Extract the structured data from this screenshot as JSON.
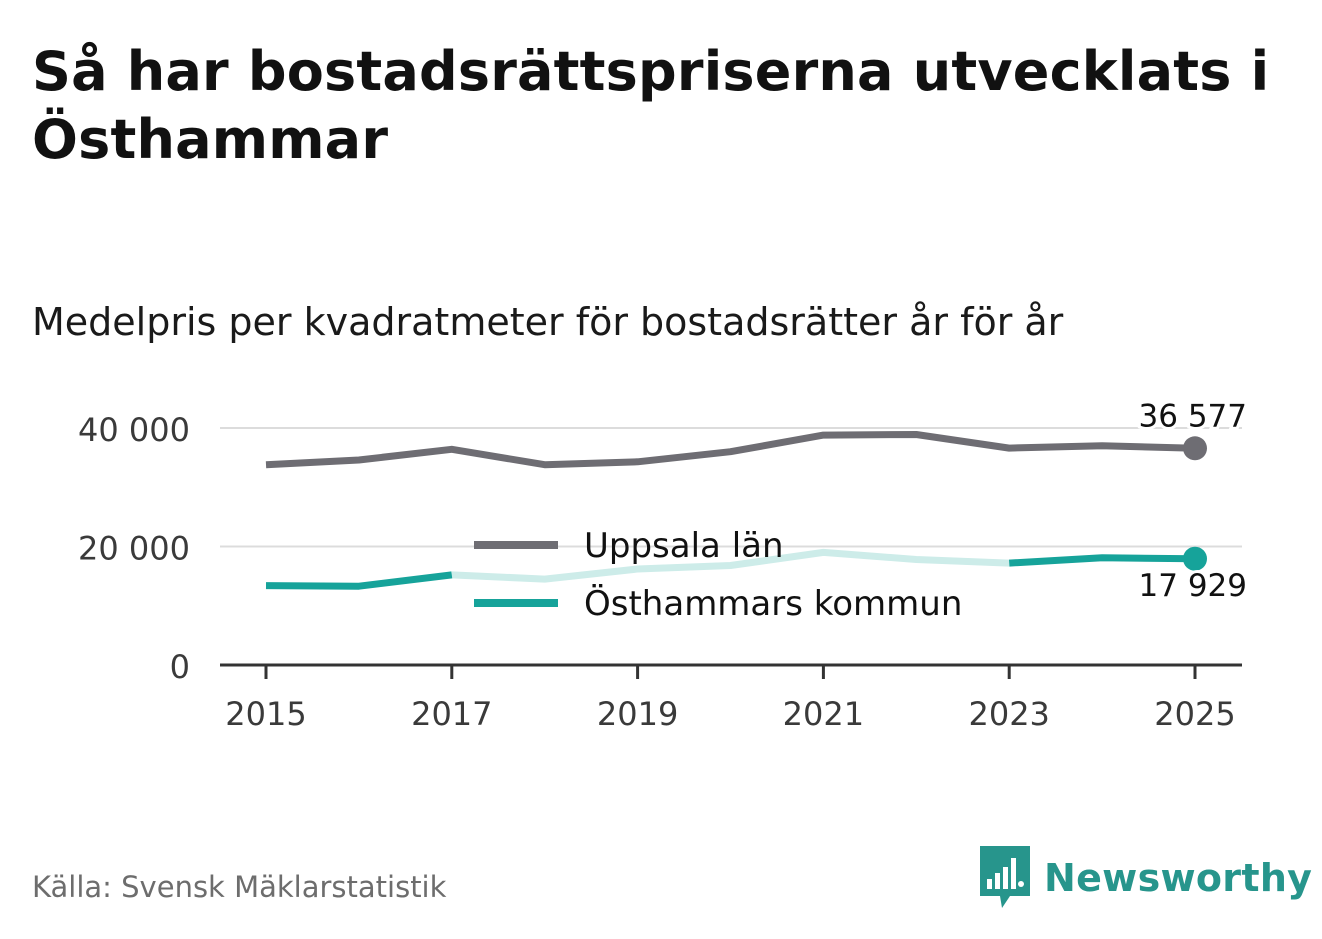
{
  "title": "Så har bostadsrättspriserna utvecklats i Östhammar",
  "subtitle": "Medelpris per kvadratmeter för bostadsrätter år för år",
  "source": "Källa: Svensk Mäklarstatistik",
  "brand": {
    "name": "Newsworthy",
    "color": "#27958c"
  },
  "chart_data": {
    "type": "line",
    "x": [
      2015,
      2016,
      2017,
      2018,
      2019,
      2020,
      2021,
      2022,
      2023,
      2024,
      2025
    ],
    "xticks": [
      2015,
      2017,
      2019,
      2021,
      2023,
      2025
    ],
    "xtick_labels": [
      "2015",
      "2017",
      "2019",
      "2021",
      "2023",
      "2025"
    ],
    "ylim": [
      0,
      40000
    ],
    "yticks": [
      0,
      20000,
      40000
    ],
    "ytick_labels": [
      "0",
      "20 000",
      "40 000"
    ],
    "grid": true,
    "legend_position": "center",
    "series": [
      {
        "name": "Uppsala län",
        "color": "#6e6d73",
        "values": [
          33800,
          34600,
          36400,
          33800,
          34300,
          36000,
          38800,
          38900,
          36600,
          37000,
          36577
        ],
        "end_label": "36 577"
      },
      {
        "name": "Östhammars kommun",
        "color": "#16a39a",
        "faded_color": "#cdece9",
        "faded_range": [
          2017,
          2023
        ],
        "values": [
          13400,
          13300,
          15200,
          14500,
          16200,
          16800,
          19000,
          17800,
          17200,
          18100,
          17929
        ],
        "end_label": "17 929"
      }
    ]
  }
}
